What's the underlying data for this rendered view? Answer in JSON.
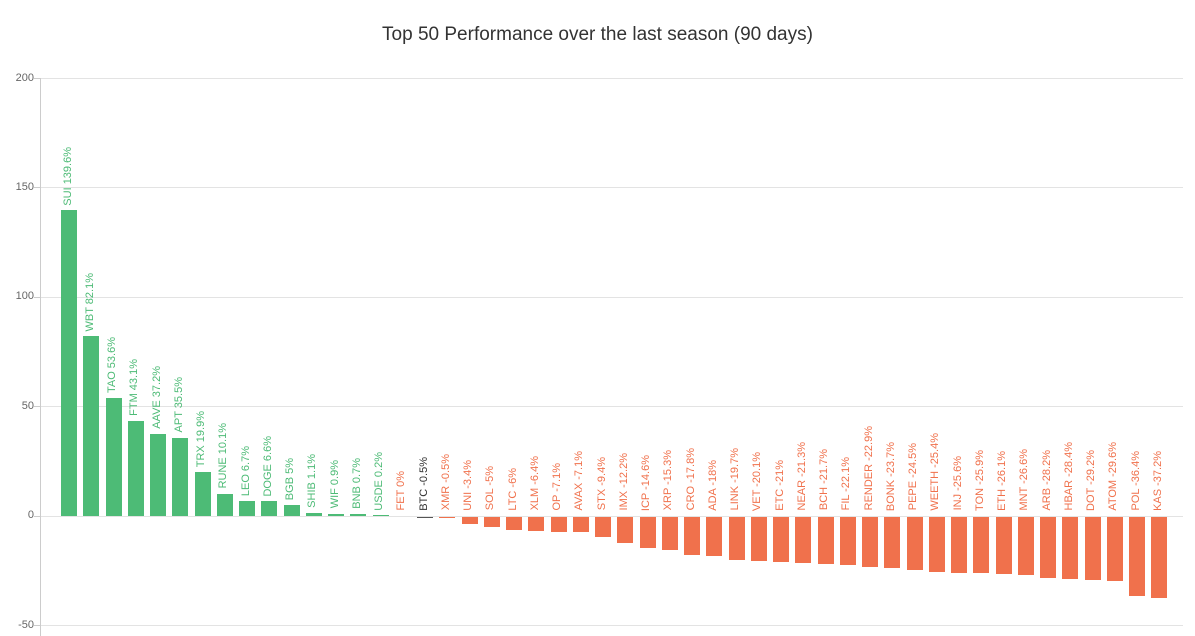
{
  "chart_data": {
    "type": "bar",
    "title": "Top 50 Performance over the last season (90 days)",
    "xlabel": "",
    "ylabel": "",
    "ylim": [
      -50,
      200
    ],
    "yticks": [
      200,
      150,
      100,
      50,
      0,
      -50
    ],
    "grid": true,
    "legend_position": "none",
    "bar_label_style": "rotated 90deg, placed above bar / above zero line",
    "colors": {
      "positive": "#4DBB76",
      "negative": "#F0714C",
      "btc": "#555555",
      "btc_label": "#333333",
      "axis_text": "#666666",
      "grid": "#e3e3e3",
      "title_text": "#333333"
    },
    "items": [
      {
        "symbol": "SUI",
        "label": "SUI 139.6%",
        "value": 139.6,
        "color": "positive"
      },
      {
        "symbol": "WBT",
        "label": "WBT 82.1%",
        "value": 82.1,
        "color": "positive"
      },
      {
        "symbol": "TAO",
        "label": "TAO 53.6%",
        "value": 53.6,
        "color": "positive"
      },
      {
        "symbol": "FTM",
        "label": "FTM 43.1%",
        "value": 43.1,
        "color": "positive"
      },
      {
        "symbol": "AAVE",
        "label": "AAVE 37.2%",
        "value": 37.2,
        "color": "positive"
      },
      {
        "symbol": "APT",
        "label": "APT 35.5%",
        "value": 35.5,
        "color": "positive"
      },
      {
        "symbol": "TRX",
        "label": "TRX 19.9%",
        "value": 19.9,
        "color": "positive"
      },
      {
        "symbol": "RUNE",
        "label": "RUNE 10.1%",
        "value": 10.1,
        "color": "positive"
      },
      {
        "symbol": "LEO",
        "label": "LEO 6.7%",
        "value": 6.7,
        "color": "positive"
      },
      {
        "symbol": "DOGE",
        "label": "DOGE 6.6%",
        "value": 6.6,
        "color": "positive"
      },
      {
        "symbol": "BGB",
        "label": "BGB 5%",
        "value": 5,
        "color": "positive"
      },
      {
        "symbol": "SHIB",
        "label": "SHIB 1.1%",
        "value": 1.1,
        "color": "positive"
      },
      {
        "symbol": "WIF",
        "label": "WIF 0.9%",
        "value": 0.9,
        "color": "positive"
      },
      {
        "symbol": "BNB",
        "label": "BNB 0.7%",
        "value": 0.7,
        "color": "positive"
      },
      {
        "symbol": "USDE",
        "label": "USDE 0.2%",
        "value": 0.2,
        "color": "positive"
      },
      {
        "symbol": "FET",
        "label": "FET 0%",
        "value": 0,
        "color": "negative"
      },
      {
        "symbol": "BTC",
        "label": "BTC -0.5%",
        "value": -0.5,
        "color": "btc"
      },
      {
        "symbol": "XMR",
        "label": "XMR -0.5%",
        "value": -0.5,
        "color": "negative"
      },
      {
        "symbol": "UNI",
        "label": "UNI -3.4%",
        "value": -3.4,
        "color": "negative"
      },
      {
        "symbol": "SOL",
        "label": "SOL -5%",
        "value": -5,
        "color": "negative"
      },
      {
        "symbol": "LTC",
        "label": "LTC -6%",
        "value": -6,
        "color": "negative"
      },
      {
        "symbol": "XLM",
        "label": "XLM -6.4%",
        "value": -6.4,
        "color": "negative"
      },
      {
        "symbol": "OP",
        "label": "OP -7.1%",
        "value": -7.1,
        "color": "negative"
      },
      {
        "symbol": "AVAX",
        "label": "AVAX -7.1%",
        "value": -7.1,
        "color": "negative"
      },
      {
        "symbol": "STX",
        "label": "STX -9.4%",
        "value": -9.4,
        "color": "negative"
      },
      {
        "symbol": "IMX",
        "label": "IMX -12.2%",
        "value": -12.2,
        "color": "negative"
      },
      {
        "symbol": "ICP",
        "label": "ICP -14.6%",
        "value": -14.6,
        "color": "negative"
      },
      {
        "symbol": "XRP",
        "label": "XRP -15.3%",
        "value": -15.3,
        "color": "negative"
      },
      {
        "symbol": "CRO",
        "label": "CRO -17.8%",
        "value": -17.8,
        "color": "negative"
      },
      {
        "symbol": "ADA",
        "label": "ADA -18%",
        "value": -18,
        "color": "negative"
      },
      {
        "symbol": "LINK",
        "label": "LINK -19.7%",
        "value": -19.7,
        "color": "negative"
      },
      {
        "symbol": "VET",
        "label": "VET -20.1%",
        "value": -20.1,
        "color": "negative"
      },
      {
        "symbol": "ETC",
        "label": "ETC -21%",
        "value": -21,
        "color": "negative"
      },
      {
        "symbol": "NEAR",
        "label": "NEAR -21.3%",
        "value": -21.3,
        "color": "negative"
      },
      {
        "symbol": "BCH",
        "label": "BCH -21.7%",
        "value": -21.7,
        "color": "negative"
      },
      {
        "symbol": "FIL",
        "label": "FIL -22.1%",
        "value": -22.1,
        "color": "negative"
      },
      {
        "symbol": "RENDER",
        "label": "RENDER -22.9%",
        "value": -22.9,
        "color": "negative"
      },
      {
        "symbol": "BONK",
        "label": "BONK -23.7%",
        "value": -23.7,
        "color": "negative"
      },
      {
        "symbol": "PEPE",
        "label": "PEPE -24.5%",
        "value": -24.5,
        "color": "negative"
      },
      {
        "symbol": "WEETH",
        "label": "WEETH -25.4%",
        "value": -25.4,
        "color": "negative"
      },
      {
        "symbol": "INJ",
        "label": "INJ -25.6%",
        "value": -25.6,
        "color": "negative"
      },
      {
        "symbol": "TON",
        "label": "TON -25.9%",
        "value": -25.9,
        "color": "negative"
      },
      {
        "symbol": "ETH",
        "label": "ETH -26.1%",
        "value": -26.1,
        "color": "negative"
      },
      {
        "symbol": "MNT",
        "label": "MNT -26.6%",
        "value": -26.6,
        "color": "negative"
      },
      {
        "symbol": "ARB",
        "label": "ARB -28.2%",
        "value": -28.2,
        "color": "negative"
      },
      {
        "symbol": "HBAR",
        "label": "HBAR -28.4%",
        "value": -28.4,
        "color": "negative"
      },
      {
        "symbol": "DOT",
        "label": "DOT -29.2%",
        "value": -29.2,
        "color": "negative"
      },
      {
        "symbol": "ATOM",
        "label": "ATOM -29.6%",
        "value": -29.6,
        "color": "negative"
      },
      {
        "symbol": "POL",
        "label": "POL -36.4%",
        "value": -36.4,
        "color": "negative"
      },
      {
        "symbol": "KAS",
        "label": "KAS -37.2%",
        "value": -37.2,
        "color": "negative"
      }
    ]
  }
}
